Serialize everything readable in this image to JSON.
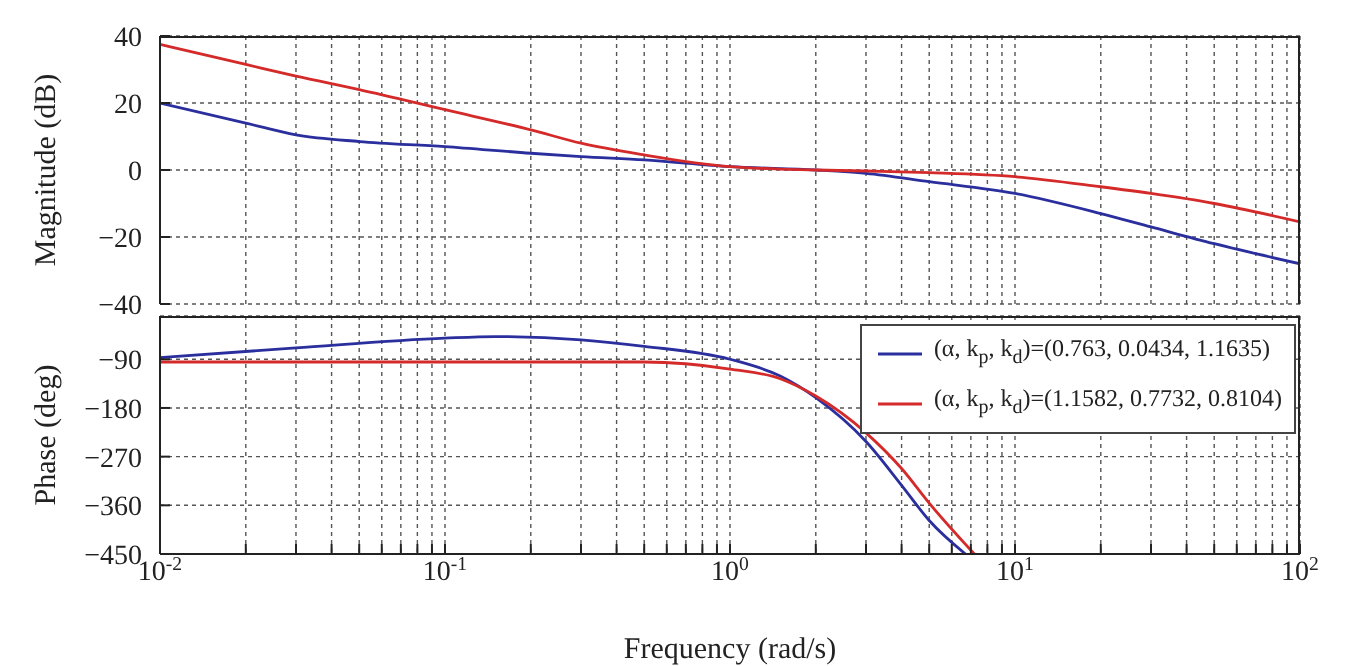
{
  "chart_data": [
    {
      "type": "line",
      "ylabel": "Magnitude (dB)",
      "log": "x",
      "grid": true,
      "legend": false,
      "tick_labels": "y",
      "line_style": "solid",
      "marker": "none",
      "xlim": [
        0.01,
        100
      ],
      "ylim": [
        -40,
        40
      ],
      "yticks": [
        -40,
        -20,
        0,
        20,
        40
      ],
      "xticks": [
        0.01,
        0.02,
        0.03,
        0.04,
        0.05,
        0.06,
        0.07,
        0.08,
        0.09,
        0.1,
        0.2,
        0.3,
        0.4,
        0.5,
        0.6,
        0.7,
        0.8,
        0.9,
        1,
        2,
        3,
        4,
        5,
        6,
        7,
        8,
        9,
        10,
        20,
        30,
        40,
        50,
        60,
        70,
        80,
        90,
        100
      ],
      "x": [
        0.01,
        0.02,
        0.03,
        0.05,
        0.1,
        0.2,
        0.3,
        0.5,
        1,
        2,
        3,
        5,
        10,
        20,
        30,
        50,
        100
      ],
      "series": [
        {
          "color": "#2b2f9e",
          "values": [
            20,
            14,
            10.5,
            8.5,
            7,
            5,
            4,
            3,
            1,
            0,
            -1,
            -3.5,
            -7,
            -13,
            -17,
            -22,
            -28
          ]
        },
        {
          "color": "#d42a2a",
          "values": [
            37.5,
            31.5,
            28,
            24,
            18,
            12,
            8,
            4.5,
            1,
            0,
            -0.3,
            -0.8,
            -2,
            -5,
            -7,
            -10,
            -15.5
          ]
        }
      ]
    },
    {
      "type": "line",
      "xlabel": "Frequency (rad/s)",
      "ylabel": "Phase (deg)",
      "log": "x",
      "grid": true,
      "legend": "top right",
      "line_style": "solid",
      "marker": "none",
      "xlim": [
        0.01,
        100
      ],
      "ylim": [
        -450,
        -10
      ],
      "yticks": [
        -450,
        -360,
        -270,
        -180,
        -90
      ],
      "xticks": [
        {
          "value": 0.01,
          "label": "10$^{-2}$"
        },
        {
          "value": 0.02,
          "label": null
        },
        {
          "value": 0.03,
          "label": null
        },
        {
          "value": 0.04,
          "label": null
        },
        {
          "value": 0.05,
          "label": null
        },
        {
          "value": 0.06,
          "label": null
        },
        {
          "value": 0.07,
          "label": null
        },
        {
          "value": 0.08,
          "label": null
        },
        {
          "value": 0.09,
          "label": null
        },
        {
          "value": 0.1,
          "label": "10$^{-1}$"
        },
        {
          "value": 0.2,
          "label": null
        },
        {
          "value": 0.3,
          "label": null
        },
        {
          "value": 0.4,
          "label": null
        },
        {
          "value": 0.5,
          "label": null
        },
        {
          "value": 0.6,
          "label": null
        },
        {
          "value": 0.7,
          "label": null
        },
        {
          "value": 0.8,
          "label": null
        },
        {
          "value": 0.9,
          "label": null
        },
        {
          "value": 1,
          "label": "10$^{0}$"
        },
        {
          "value": 2,
          "label": null
        },
        {
          "value": 3,
          "label": null
        },
        {
          "value": 4,
          "label": null
        },
        {
          "value": 5,
          "label": null
        },
        {
          "value": 6,
          "label": null
        },
        {
          "value": 7,
          "label": null
        },
        {
          "value": 8,
          "label": null
        },
        {
          "value": 9,
          "label": null
        },
        {
          "value": 10,
          "label": "10$^{1}$"
        },
        {
          "value": 20,
          "label": null
        },
        {
          "value": 30,
          "label": null
        },
        {
          "value": 40,
          "label": null
        },
        {
          "value": 50,
          "label": null
        },
        {
          "value": 60,
          "label": null
        },
        {
          "value": 70,
          "label": null
        },
        {
          "value": 80,
          "label": null
        },
        {
          "value": 90,
          "label": null
        },
        {
          "value": 100,
          "label": "10$^{2}$"
        }
      ],
      "series": [
        {
          "name": "(α, k$_{p}$, k$_{d}$)=(0.763, 0.0434, 1.1635)",
          "color": "#2b2f9e",
          "x": [
            0.01,
            0.03,
            0.1,
            0.15,
            0.3,
            0.5,
            1,
            1.5,
            2,
            3,
            4,
            5,
            6.7
          ],
          "values": [
            -87,
            -69,
            -51,
            -48,
            -54,
            -66,
            -90,
            -121,
            -161,
            -242,
            -323,
            -388,
            -450
          ]
        },
        {
          "name": "(α, k$_{p}$, k$_{d}$)=(1.1582, 0.7732, 0.8104)",
          "color": "#d42a2a",
          "x": [
            0.01,
            0.1,
            0.5,
            1,
            1.5,
            2,
            3,
            4,
            5,
            7.2
          ],
          "values": [
            -95,
            -95,
            -95,
            -108,
            -126,
            -158,
            -226,
            -292,
            -356,
            -450
          ]
        }
      ]
    }
  ]
}
